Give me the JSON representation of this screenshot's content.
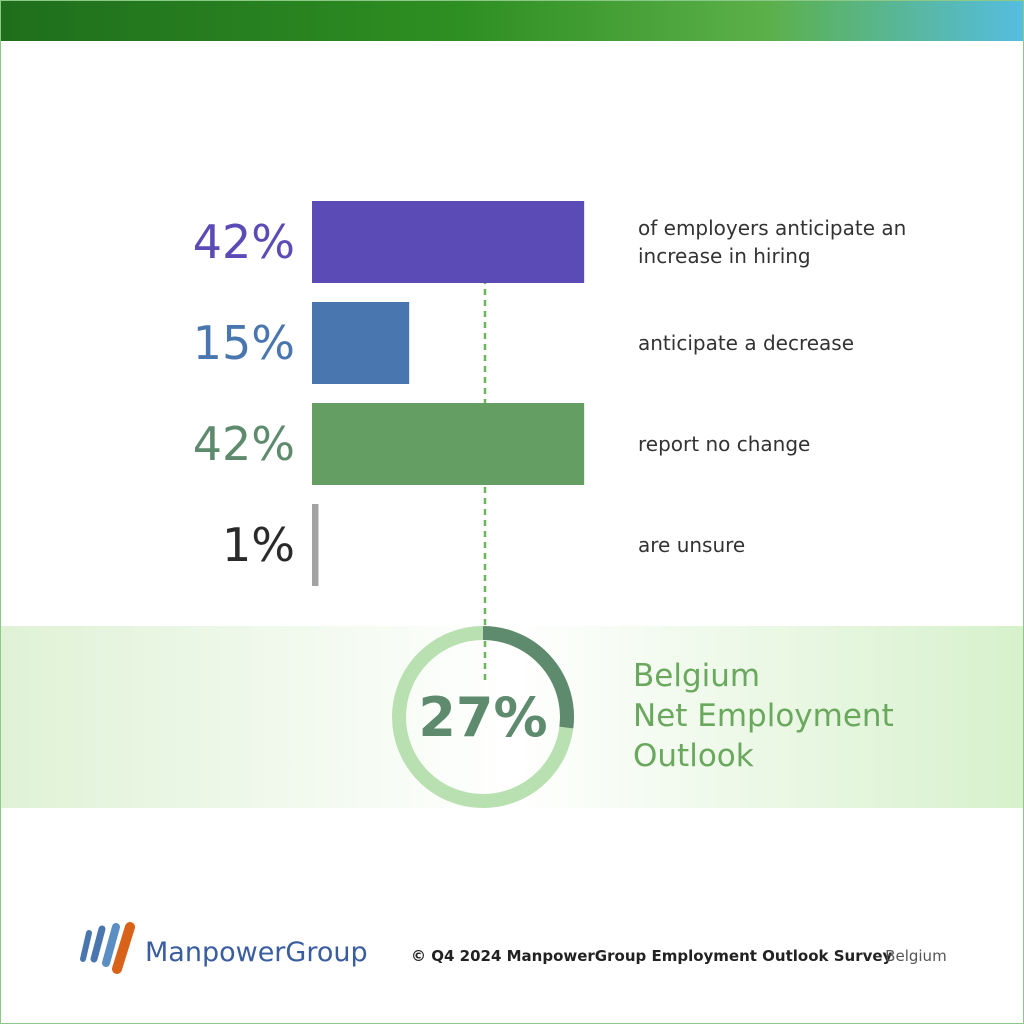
{
  "chart_data": [
    {
      "type": "hbar",
      "categories": [
        "of employers anticipate an increase in hiring",
        "anticipate a decrease",
        "report no change",
        "are unsure"
      ],
      "values": [
        42,
        15,
        42,
        1
      ],
      "value_labels": [
        "42%",
        "15%",
        "42%",
        "1%"
      ],
      "colors": [
        "#5b4bb7",
        "#4a76b0",
        "#659e62",
        "#a3a3a3"
      ],
      "label_colors": [
        "#5b4bb7",
        "#4a76b0",
        "#5e8a6e",
        "#2a2a2a"
      ],
      "xlim": [
        0,
        100
      ]
    },
    {
      "type": "donut",
      "title_lines": [
        "Belgium",
        "Net Employment",
        "Outlook"
      ],
      "value": 27,
      "value_label": "27%",
      "ylim": [
        0,
        100
      ],
      "color": "#5e8a6e",
      "track_color": "#b8e0b0"
    }
  ],
  "footer": {
    "logo": "ManpowerGroup",
    "source": "© Q4 2024 ManpowerGroup Employment Outlook Survey",
    "region": "- Belgium"
  }
}
